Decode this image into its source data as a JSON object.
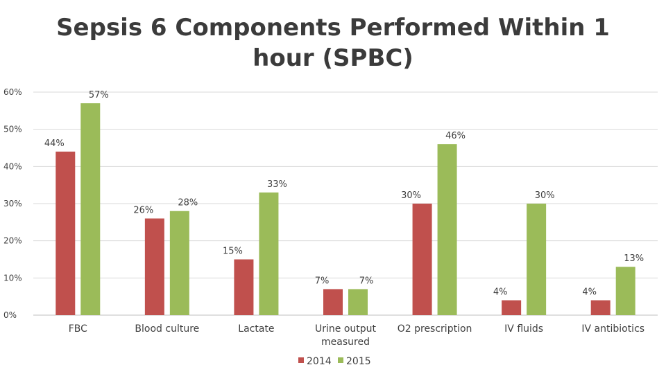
{
  "title_line1": "Sepsis 6 Components Performed Within 1",
  "title_line2": "hour (SPBC)",
  "chart_data": {
    "type": "bar",
    "categories": [
      [
        "FBC"
      ],
      [
        "Blood culture"
      ],
      [
        "Lactate"
      ],
      [
        "Urine output",
        "measured"
      ],
      [
        "O2 prescription"
      ],
      [
        "IV fluids"
      ],
      [
        "IV antibiotics"
      ]
    ],
    "series": [
      {
        "name": "2014",
        "color": "#c0504d",
        "values": [
          44,
          26,
          15,
          7,
          30,
          4,
          4
        ],
        "labels": [
          "44%",
          "26%",
          "15%",
          "7%",
          "30%",
          "4%",
          "4%"
        ]
      },
      {
        "name": "2015",
        "color": "#9bbb59",
        "values": [
          57,
          28,
          33,
          7,
          46,
          30,
          13
        ],
        "labels": [
          "57%",
          "28%",
          "33%",
          "7%",
          "46%",
          "30%",
          "13%"
        ]
      }
    ],
    "ylim": [
      0,
      60
    ],
    "yticks": [
      0,
      10,
      20,
      30,
      40,
      50,
      60
    ],
    "ytick_labels": [
      "0%",
      "10%",
      "20%",
      "30%",
      "40%",
      "50%",
      "60%"
    ],
    "grid": true,
    "legend": "bottom"
  }
}
